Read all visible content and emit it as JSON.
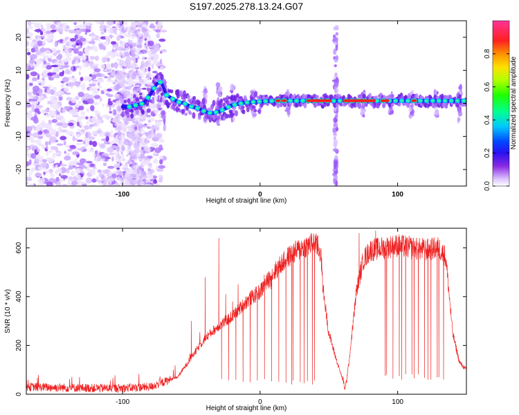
{
  "title": "S197.2025.278.13.24.G07",
  "chart_data": [
    {
      "type": "heatmap",
      "name": "spectrogram",
      "xlabel": "Height of straight line (km)",
      "ylabel": "Frequency (Hz)",
      "xlim": [
        -170,
        150
      ],
      "ylim": [
        -25,
        25
      ],
      "xticks": [
        -100,
        0,
        100
      ],
      "xtick_labels": [
        "-100",
        "0",
        "100"
      ],
      "yticks": [
        -20,
        -10,
        0,
        10,
        20
      ],
      "ytick_labels": [
        "-20",
        "-10",
        "0",
        "10",
        "20"
      ],
      "colorbar": {
        "label": "Normalized spectral amplitude",
        "range": [
          0,
          1
        ],
        "ticks": [
          0.0,
          0.2,
          0.4,
          0.6,
          0.8
        ],
        "tick_labels": [
          "0.0",
          "0.2",
          "0.4",
          "0.6",
          "0.8"
        ],
        "colors": [
          "#ffffff",
          "#e0c8ff",
          "#8a2be2",
          "#3a1cf0",
          "#0040ff",
          "#00c0ff",
          "#00ff80",
          "#40ff00",
          "#c0ff00",
          "#ffe000",
          "#ff8000",
          "#ff2020",
          "#ff3090"
        ]
      },
      "ridge": {
        "x": [
          -100,
          -95,
          -90,
          -85,
          -80,
          -75,
          -72,
          -68,
          -64,
          -60,
          -55,
          -50,
          -45,
          -40,
          -35,
          -30,
          -25,
          -20,
          -10,
          0,
          10,
          20,
          40,
          60,
          80,
          100,
          120,
          140,
          150
        ],
        "freq": [
          -1,
          -1,
          -0.5,
          0,
          2.5,
          6.0,
          6.5,
          2.5,
          1.5,
          0.5,
          0.0,
          -1.0,
          -1.5,
          -2.5,
          -3.0,
          -2.5,
          -1.5,
          -0.5,
          0.3,
          0.6,
          0.8,
          0.8,
          0.8,
          0.8,
          0.8,
          0.8,
          0.8,
          0.8,
          0.8
        ]
      }
    },
    {
      "type": "line",
      "name": "snr",
      "xlabel": "Height of straight line (km)",
      "ylabel": "SNR (10 * v/v)",
      "xlim": [
        -170,
        150
      ],
      "ylim": [
        0,
        680
      ],
      "xticks": [
        -100,
        0,
        100
      ],
      "xtick_labels": [
        "-100",
        "0",
        "100"
      ],
      "yticks": [
        0,
        200,
        400,
        600
      ],
      "ytick_labels": [
        "0",
        "200",
        "400",
        "600"
      ],
      "color": "#ee2020",
      "envelope": {
        "x": [
          -170,
          -120,
          -100,
          -80,
          -60,
          -50,
          -40,
          -30,
          -25,
          -20,
          -10,
          0,
          10,
          20,
          30,
          40,
          44,
          46,
          50,
          55,
          60,
          62,
          65,
          70,
          75,
          80,
          90,
          100,
          110,
          120,
          130,
          135,
          140,
          145,
          150
        ],
        "y": [
          30,
          25,
          25,
          30,
          70,
          150,
          230,
          280,
          300,
          320,
          380,
          420,
          500,
          560,
          600,
          620,
          580,
          420,
          250,
          150,
          60,
          20,
          150,
          420,
          550,
          590,
          600,
          610,
          600,
          590,
          600,
          560,
          250,
          130,
          100
        ]
      },
      "peaks": [
        {
          "x": -50,
          "y": 300
        },
        {
          "x": -40,
          "y": 480
        },
        {
          "x": -30,
          "y": 640
        },
        {
          "x": -25,
          "y": 410
        },
        {
          "x": -20,
          "y": 380
        },
        {
          "x": -16,
          "y": 450
        },
        {
          "x": -10,
          "y": 350
        },
        {
          "x": -3,
          "y": 440
        },
        {
          "x": 3,
          "y": 490
        },
        {
          "x": 8,
          "y": 430
        },
        {
          "x": 15,
          "y": 500
        },
        {
          "x": 22,
          "y": 560
        },
        {
          "x": 28,
          "y": 620
        },
        {
          "x": 35,
          "y": 640
        },
        {
          "x": 42,
          "y": 650
        },
        {
          "x": 72,
          "y": 660
        },
        {
          "x": 84,
          "y": 670
        },
        {
          "x": 96,
          "y": 640
        },
        {
          "x": 108,
          "y": 630
        },
        {
          "x": 118,
          "y": 640
        },
        {
          "x": 126,
          "y": 630
        },
        {
          "x": 134,
          "y": 610
        }
      ],
      "dips": [
        {
          "x": 23,
          "y": 40
        },
        {
          "x": 32,
          "y": 45
        },
        {
          "x": 38,
          "y": 40
        },
        {
          "x": 91,
          "y": 75
        },
        {
          "x": 103,
          "y": 60
        },
        {
          "x": 112,
          "y": 65
        },
        {
          "x": 122,
          "y": 60
        },
        {
          "x": 130,
          "y": 70
        }
      ]
    }
  ]
}
